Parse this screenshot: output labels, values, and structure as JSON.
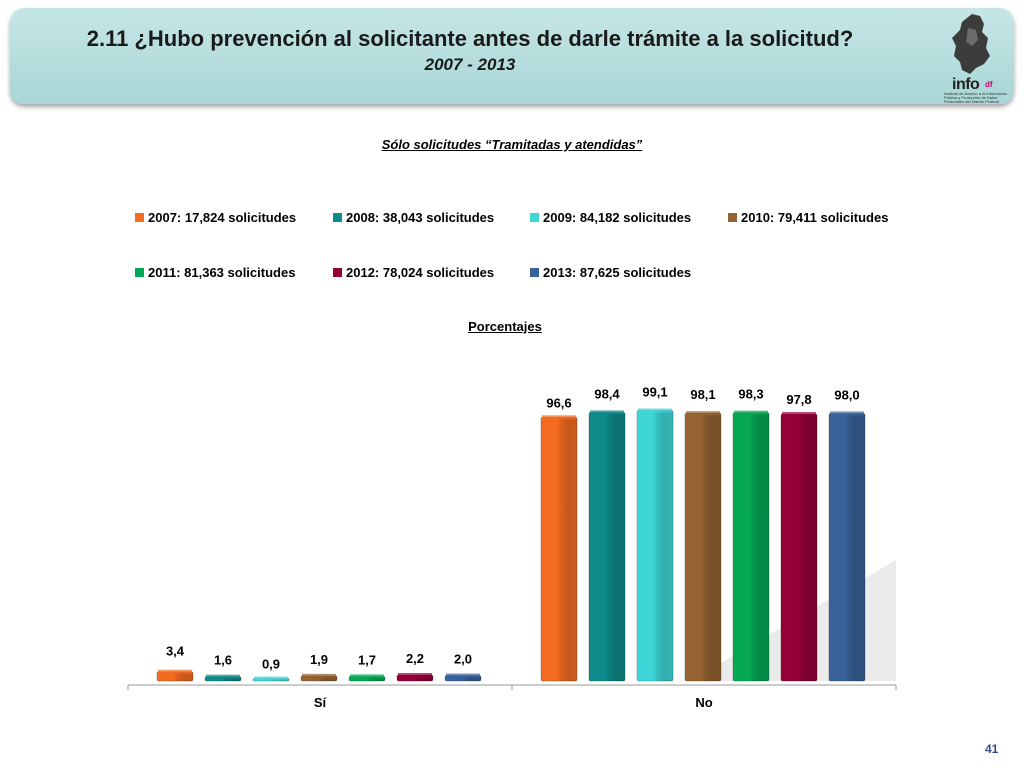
{
  "header": {
    "title": "2.11 ¿Hubo prevención al solicitante antes de darle trámite a la solicitud?",
    "period": "2007 - 2013",
    "logo_text": "info",
    "logo_tag": "df",
    "logo_fine_print": "Instituto de Acceso a la Información Pública y Protección de Datos Personales del Distrito Federal"
  },
  "subtitle": "Sólo solicitudes “Tramitadas y atendidas”",
  "percent_label": "Porcentajes",
  "page_number": "41",
  "colors": {
    "banner": "#b4dcdc",
    "2007": "#f26b21",
    "2008": "#0e8a8a",
    "2009": "#3ed6d6",
    "2010": "#946331",
    "2011": "#05a955",
    "2012": "#950038",
    "2013": "#386299"
  },
  "chart_data": {
    "type": "bar",
    "categories": [
      "Sí",
      "No"
    ],
    "ylim": [
      0,
      100
    ],
    "grid": false,
    "legend_position": "top",
    "series": [
      {
        "name": "2007: 17,824 solicitudes",
        "values": [
          3.4,
          96.6
        ],
        "labels": [
          "3,4",
          "96,6"
        ],
        "color": "#f26b21"
      },
      {
        "name": "2008: 38,043 solicitudes",
        "values": [
          1.6,
          98.4
        ],
        "labels": [
          "1,6",
          "98,4"
        ],
        "color": "#0e8a8a"
      },
      {
        "name": "2009: 84,182 solicitudes",
        "values": [
          0.9,
          99.1
        ],
        "labels": [
          "0,9",
          "99,1"
        ],
        "color": "#3ed6d6"
      },
      {
        "name": "2010: 79,411 solicitudes",
        "values": [
          1.9,
          98.1
        ],
        "labels": [
          "1,9",
          "98,1"
        ],
        "color": "#946331"
      },
      {
        "name": "2011: 81,363 solicitudes",
        "values": [
          1.7,
          98.3
        ],
        "labels": [
          "1,7",
          "98,3"
        ],
        "color": "#05a955"
      },
      {
        "name": "2012: 78,024 solicitudes",
        "values": [
          2.2,
          97.8
        ],
        "labels": [
          "2,2",
          "97,8"
        ],
        "color": "#950038"
      },
      {
        "name": "2013: 87,625 solicitudes",
        "values": [
          2.0,
          98.0
        ],
        "labels": [
          "2,0",
          "98,0"
        ],
        "color": "#386299"
      }
    ]
  }
}
